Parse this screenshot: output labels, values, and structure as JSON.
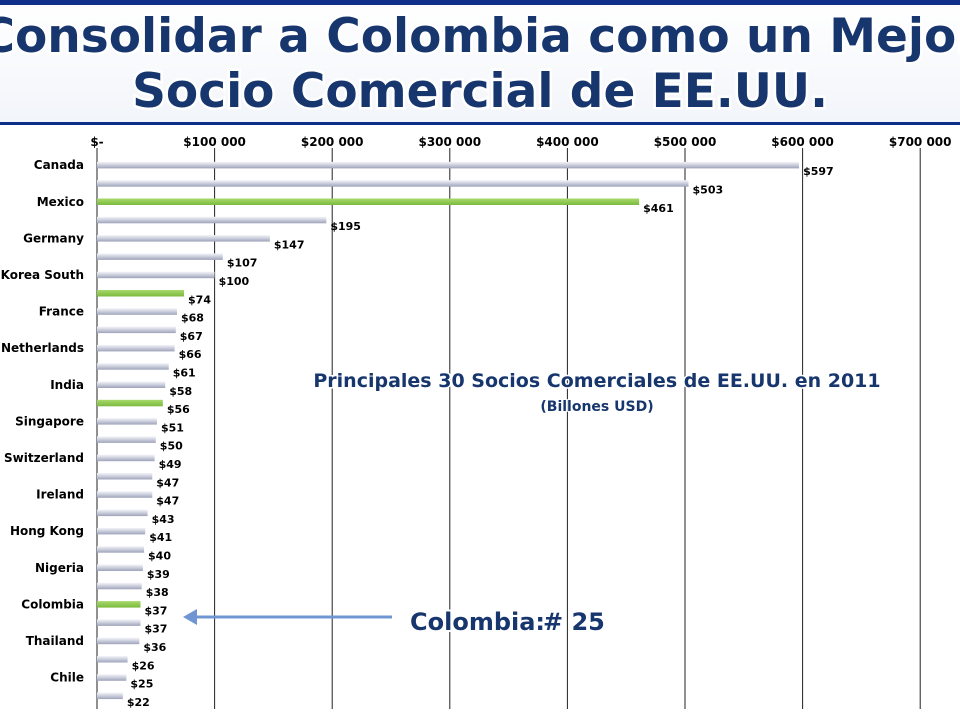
{
  "title": {
    "line1": "Consolidar a Colombia como un Mejor",
    "line2": "Socio Comercial de EE.UU."
  },
  "annotation": {
    "heading": "Principales 30 Socios Comerciales de EE.UU. en 2011",
    "subheading": "(Billones USD)"
  },
  "callout": {
    "label": "Colombia:",
    "rank": "# 25"
  },
  "colors": {
    "bar_default": "#c6c9d8",
    "bar_highlight": "#8cc84b",
    "title_border": "#0d2f8a",
    "title_text": "#17366e",
    "arrow": "#6f95d3"
  },
  "chart_data": {
    "type": "bar",
    "orientation": "horizontal",
    "x_ticks": [
      "$-",
      "$100 000",
      "$200 000",
      "$300 000",
      "$400 000",
      "$500 000",
      "$600 000",
      "$700 000"
    ],
    "xlim": [
      0,
      700
    ],
    "grid": true,
    "category_labels": [
      "Canada",
      "Mexico",
      "Germany",
      "Korea South",
      "France",
      "Netherlands",
      "India",
      "Singapore",
      "Switzerland",
      "Ireland",
      "Hong Kong",
      "Nigeria",
      "Colombia",
      "Thailand",
      "Chile"
    ],
    "bars": [
      {
        "category": "Canada",
        "value": 597,
        "label": "$597",
        "highlight": false
      },
      {
        "category": "",
        "value": 503,
        "label": "$503",
        "highlight": false
      },
      {
        "category": "Mexico",
        "value": 461,
        "label": "$461",
        "highlight": true
      },
      {
        "category": "",
        "value": 195,
        "label": "$195",
        "highlight": false
      },
      {
        "category": "Germany",
        "value": 147,
        "label": "$147",
        "highlight": false
      },
      {
        "category": "",
        "value": 107,
        "label": "$107",
        "highlight": false
      },
      {
        "category": "Korea South",
        "value": 100,
        "label": "$100",
        "highlight": false
      },
      {
        "category": "",
        "value": 74,
        "label": "$74",
        "highlight": true
      },
      {
        "category": "France",
        "value": 68,
        "label": "$68",
        "highlight": false
      },
      {
        "category": "",
        "value": 67,
        "label": "$67",
        "highlight": false
      },
      {
        "category": "Netherlands",
        "value": 66,
        "label": "$66",
        "highlight": false
      },
      {
        "category": "",
        "value": 61,
        "label": "$61",
        "highlight": false
      },
      {
        "category": "India",
        "value": 58,
        "label": "$58",
        "highlight": false
      },
      {
        "category": "",
        "value": 56,
        "label": "$56",
        "highlight": true
      },
      {
        "category": "Singapore",
        "value": 51,
        "label": "$51",
        "highlight": false
      },
      {
        "category": "",
        "value": 50,
        "label": "$50",
        "highlight": false
      },
      {
        "category": "Switzerland",
        "value": 49,
        "label": "$49",
        "highlight": false
      },
      {
        "category": "",
        "value": 47,
        "label": "$47",
        "highlight": false
      },
      {
        "category": "Ireland",
        "value": 47,
        "label": "$47",
        "highlight": false
      },
      {
        "category": "",
        "value": 43,
        "label": "$43",
        "highlight": false
      },
      {
        "category": "Hong Kong",
        "value": 41,
        "label": "$41",
        "highlight": false
      },
      {
        "category": "",
        "value": 40,
        "label": "$40",
        "highlight": false
      },
      {
        "category": "Nigeria",
        "value": 39,
        "label": "$39",
        "highlight": false
      },
      {
        "category": "",
        "value": 38,
        "label": "$38",
        "highlight": false
      },
      {
        "category": "Colombia",
        "value": 37,
        "label": "$37",
        "highlight": true
      },
      {
        "category": "",
        "value": 37,
        "label": "$37",
        "highlight": false
      },
      {
        "category": "Thailand",
        "value": 36,
        "label": "$36",
        "highlight": false
      },
      {
        "category": "",
        "value": 26,
        "label": "$26",
        "highlight": false
      },
      {
        "category": "Chile",
        "value": 25,
        "label": "$25",
        "highlight": false
      },
      {
        "category": "",
        "value": 22,
        "label": "$22",
        "highlight": false
      }
    ]
  }
}
